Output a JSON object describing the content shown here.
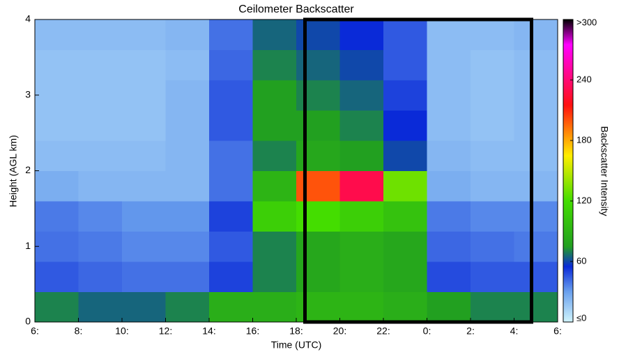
{
  "chart_data": {
    "type": "heatmap",
    "title": "Ceilometer Backscatter",
    "x_label": "Time (UTC)",
    "y_label": "Height (AGL km)",
    "colorbar_label": "Backscatter Intensity",
    "x_bins": [
      6,
      8,
      10,
      12,
      14,
      16,
      18,
      20,
      22,
      24,
      26,
      28,
      30
    ],
    "y_bins": [
      0,
      0.4,
      0.8,
      1.2,
      1.6,
      2.0,
      2.4,
      2.8,
      3.2,
      3.6,
      4.0
    ],
    "z": [
      [
        70,
        65,
        65,
        70,
        85,
        85,
        90,
        90,
        85,
        75,
        70,
        70
      ],
      [
        45,
        42,
        40,
        40,
        50,
        70,
        80,
        85,
        80,
        48,
        45,
        45
      ],
      [
        40,
        38,
        35,
        35,
        45,
        70,
        80,
        85,
        80,
        42,
        40,
        38
      ],
      [
        38,
        35,
        32,
        32,
        50,
        110,
        120,
        110,
        100,
        38,
        35,
        35
      ],
      [
        25,
        22,
        22,
        22,
        40,
        90,
        200,
        230,
        130,
        25,
        22,
        22
      ],
      [
        20,
        20,
        20,
        22,
        40,
        70,
        80,
        75,
        60,
        22,
        20,
        20
      ],
      [
        18,
        18,
        18,
        22,
        45,
        75,
        75,
        70,
        55,
        20,
        18,
        20
      ],
      [
        18,
        18,
        18,
        22,
        45,
        75,
        70,
        65,
        50,
        20,
        18,
        20
      ],
      [
        18,
        18,
        18,
        20,
        42,
        70,
        65,
        60,
        45,
        20,
        18,
        20
      ],
      [
        20,
        20,
        20,
        22,
        40,
        65,
        60,
        55,
        45,
        20,
        20,
        22
      ]
    ],
    "xlim": [
      6,
      30
    ],
    "xticks": [
      {
        "value": 6,
        "label": "6:"
      },
      {
        "value": 8,
        "label": "8:"
      },
      {
        "value": 10,
        "label": "10:"
      },
      {
        "value": 12,
        "label": "12:"
      },
      {
        "value": 14,
        "label": "14:"
      },
      {
        "value": 16,
        "label": "16:"
      },
      {
        "value": 18,
        "label": "18:"
      },
      {
        "value": 20,
        "label": "20:"
      },
      {
        "value": 22,
        "label": "22:"
      },
      {
        "value": 24,
        "label": "0:"
      },
      {
        "value": 26,
        "label": "2:"
      },
      {
        "value": 28,
        "label": "4:"
      },
      {
        "value": 30,
        "label": "6:"
      }
    ],
    "ylim": [
      0,
      4
    ],
    "yticks": [
      0,
      1,
      2,
      3,
      4
    ],
    "zlim": [
      0,
      300
    ],
    "zticks": [
      {
        "value": 0,
        "label": "≤0"
      },
      60,
      120,
      180,
      240,
      {
        "value": 300,
        "label": ">300"
      }
    ],
    "colorscale": [
      [
        0,
        "#d0f4fc"
      ],
      [
        30,
        "#6aa0ee"
      ],
      [
        55,
        "#0a2ad8"
      ],
      [
        75,
        "#22a020"
      ],
      [
        120,
        "#44dd00"
      ],
      [
        165,
        "#ffee00"
      ],
      [
        215,
        "#ff1010"
      ],
      [
        275,
        "#ff00ff"
      ],
      [
        300,
        "#000000"
      ]
    ],
    "highlight_xrange": [
      18.4,
      28.8
    ],
    "highlight_color": "#000000"
  }
}
